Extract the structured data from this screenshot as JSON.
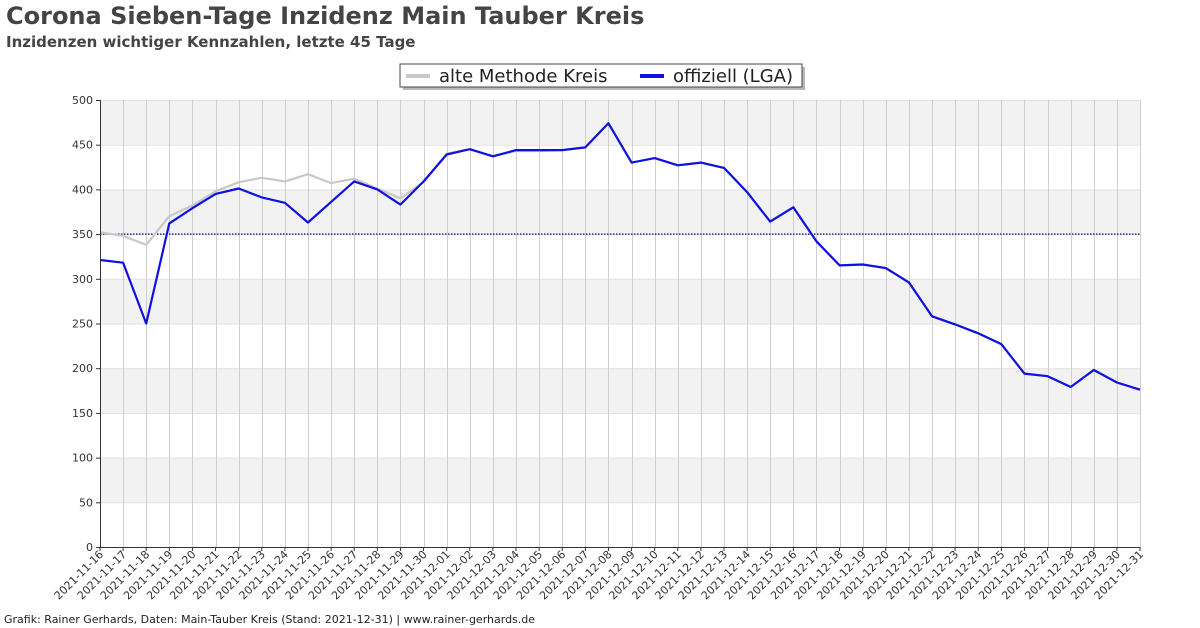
{
  "title": "Corona Sieben-Tage Inzidenz Main Tauber Kreis",
  "subtitle": "Inzidenzen wichtiger Kennzahlen, letzte 45 Tage",
  "footer": "Grafik: Rainer Gerhards, Daten: Main-Tauber Kreis (Stand: 2021-12-31) | www.rainer-gerhards.de",
  "chart_data": {
    "type": "line",
    "title": "Corona Sieben-Tage Inzidenz Main Tauber Kreis",
    "subtitle": "Inzidenzen wichtiger Kennzahlen, letzte 45 Tage",
    "xlabel": "",
    "ylabel": "",
    "ylim": [
      0,
      500
    ],
    "yticks": [
      0,
      50,
      100,
      150,
      200,
      250,
      300,
      350,
      400,
      450,
      500
    ],
    "grid": true,
    "legend_position": "top-center",
    "reference_line": {
      "value": 350,
      "color": "#00008b",
      "style": "dotted"
    },
    "x": [
      "2021-11-16",
      "2021-11-17",
      "2021-11-18",
      "2021-11-19",
      "2021-11-20",
      "2021-11-21",
      "2021-11-22",
      "2021-11-23",
      "2021-11-24",
      "2021-11-25",
      "2021-11-26",
      "2021-11-27",
      "2021-11-28",
      "2021-11-29",
      "2021-11-30",
      "2021-12-01",
      "2021-12-02",
      "2021-12-03",
      "2021-12-04",
      "2021-12-05",
      "2021-12-06",
      "2021-12-07",
      "2021-12-08",
      "2021-12-09",
      "2021-12-10",
      "2021-12-11",
      "2021-12-12",
      "2021-12-13",
      "2021-12-14",
      "2021-12-15",
      "2021-12-16",
      "2021-12-17",
      "2021-12-18",
      "2021-12-19",
      "2021-12-20",
      "2021-12-21",
      "2021-12-22",
      "2021-12-23",
      "2021-12-24",
      "2021-12-25",
      "2021-12-26",
      "2021-12-27",
      "2021-12-28",
      "2021-12-29",
      "2021-12-30",
      "2021-12-31"
    ],
    "series": [
      {
        "name": "alte Methode Kreis",
        "color": "#c8c8c8",
        "values": [
          352,
          348,
          338,
          370,
          382,
          398,
          408,
          413,
          409,
          417,
          407,
          412,
          401,
          390,
          408,
          440,
          445,
          437,
          443,
          443,
          444,
          447,
          474,
          430,
          435,
          427,
          430,
          424,
          397,
          364,
          380,
          342,
          315,
          316,
          312,
          296,
          258,
          249,
          239,
          227,
          194,
          191,
          179,
          198,
          184,
          176
        ]
      },
      {
        "name": "offiziell (LGA)",
        "color": "#1010e0",
        "values": [
          321,
          318,
          250,
          362,
          379,
          395,
          401,
          391,
          385,
          363,
          386,
          409,
          400,
          383,
          409,
          439,
          445,
          437,
          444,
          444,
          444,
          447,
          474,
          430,
          435,
          427,
          430,
          424,
          397,
          364,
          380,
          342,
          315,
          316,
          312,
          296,
          258,
          249,
          239,
          227,
          194,
          191,
          179,
          198,
          184,
          176
        ]
      }
    ]
  }
}
